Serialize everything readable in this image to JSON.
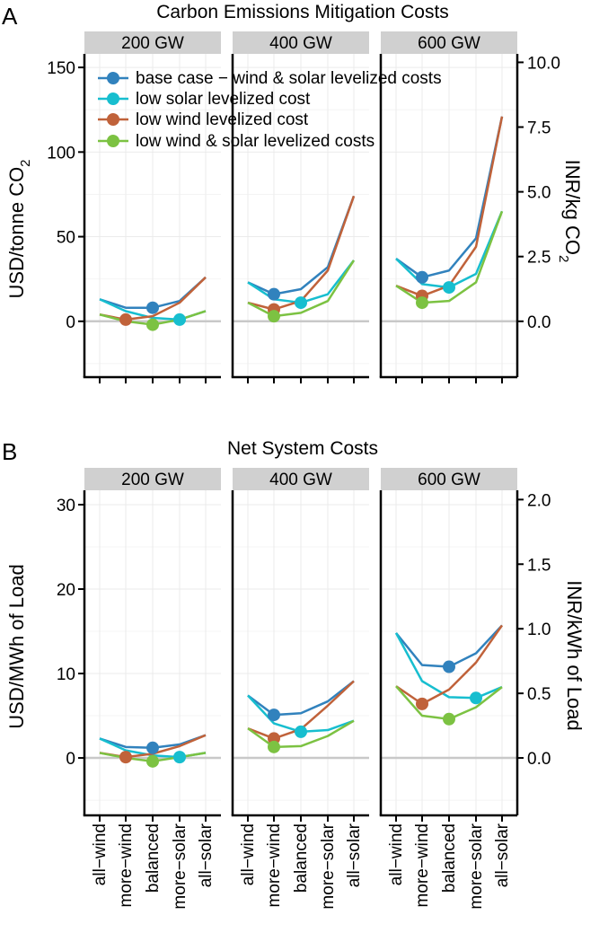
{
  "figure": {
    "panel_a_label": "A",
    "panel_b_label": "B",
    "categories": [
      "all−wind",
      "more−wind",
      "balanced",
      "more−solar",
      "all−solar"
    ]
  },
  "chart_data": [
    {
      "type": "line",
      "title": "Carbon Emissions Mitigation Costs",
      "ylabel": "USD/tonne CO",
      "ylabel_sub": "2",
      "ylabel_right": "INR/kg CO",
      "ylabel_right_sub": "2",
      "ylim": [
        -33,
        158
      ],
      "yticks": [
        0,
        50,
        100,
        150
      ],
      "yticks_right": [
        "0.0",
        "2.5",
        "5.0",
        "7.5",
        "10.0"
      ],
      "yticks_right_values": [
        0,
        38.25,
        76.5,
        114.75,
        153
      ],
      "grid": true,
      "legend": [
        "base case − wind & solar levelized costs",
        "low solar levelized cost",
        "low wind levelized cost",
        "low wind & solar levelized costs"
      ],
      "legend_position": "top",
      "series_colors": [
        "#3182bd",
        "#17becf",
        "#c0623a",
        "#7cc242"
      ],
      "facets": [
        {
          "label": "200 GW",
          "series": [
            {
              "name": "base case − wind & solar levelized costs",
              "values": [
                13,
                8,
                8,
                12,
                26
              ],
              "highlight": 2
            },
            {
              "name": "low solar levelized cost",
              "values": [
                13,
                6,
                2,
                1,
                6
              ],
              "highlight": 3
            },
            {
              "name": "low wind levelized cost",
              "values": [
                4,
                1,
                3,
                11,
                26
              ],
              "highlight": 1
            },
            {
              "name": "low wind & solar levelized costs",
              "values": [
                4,
                0,
                -2,
                1,
                6
              ],
              "highlight": 2
            }
          ]
        },
        {
          "label": "400 GW",
          "series": [
            {
              "name": "base case − wind & solar levelized costs",
              "values": [
                23,
                16,
                19,
                32,
                74
              ],
              "highlight": 1
            },
            {
              "name": "low solar levelized cost",
              "values": [
                23,
                13,
                11,
                16,
                36
              ],
              "highlight": 2
            },
            {
              "name": "low wind levelized cost",
              "values": [
                11,
                7,
                12,
                30,
                74
              ],
              "highlight": 1
            },
            {
              "name": "low wind & solar levelized costs",
              "values": [
                11,
                3,
                5,
                12,
                36
              ],
              "highlight": 1
            }
          ]
        },
        {
          "label": "600 GW",
          "series": [
            {
              "name": "base case − wind & solar levelized costs",
              "values": [
                37,
                26,
                30,
                49,
                121
              ],
              "highlight": 1
            },
            {
              "name": "low solar levelized cost",
              "values": [
                37,
                22,
                20,
                28,
                65
              ],
              "highlight": 2
            },
            {
              "name": "low wind levelized cost",
              "values": [
                21,
                15,
                21,
                44,
                121
              ],
              "highlight": 1
            },
            {
              "name": "low wind & solar levelized costs",
              "values": [
                21,
                11,
                12,
                23,
                65
              ],
              "highlight": 1
            }
          ]
        }
      ]
    },
    {
      "type": "line",
      "title": "Net System Costs",
      "ylabel": "USD/MWh of Load",
      "ylabel_right": "INR/kWh of Load",
      "ylim": [
        -6.8,
        31.7
      ],
      "yticks": [
        0,
        10,
        20,
        30
      ],
      "yticks_right": [
        "0.0",
        "0.5",
        "1.0",
        "1.5",
        "2.0"
      ],
      "yticks_right_values": [
        0,
        7.65,
        15.3,
        22.95,
        30.6
      ],
      "grid": true,
      "facets": [
        {
          "label": "200 GW",
          "series": [
            {
              "name": "base case − wind & solar levelized costs",
              "values": [
                2.3,
                1.3,
                1.2,
                1.6,
                2.7
              ],
              "highlight": 2
            },
            {
              "name": "low solar levelized cost",
              "values": [
                2.3,
                0.9,
                0.3,
                0.1,
                0.6
              ],
              "highlight": 3
            },
            {
              "name": "low wind levelized cost",
              "values": [
                0.6,
                0.1,
                0.5,
                1.4,
                2.7
              ],
              "highlight": 1
            },
            {
              "name": "low wind & solar levelized costs",
              "values": [
                0.6,
                0.0,
                -0.4,
                0.1,
                0.6
              ],
              "highlight": 2
            }
          ]
        },
        {
          "label": "400 GW",
          "series": [
            {
              "name": "base case − wind & solar levelized costs",
              "values": [
                7.4,
                5.1,
                5.3,
                6.7,
                9.1
              ],
              "highlight": 1
            },
            {
              "name": "low solar levelized cost",
              "values": [
                7.4,
                4.1,
                3.1,
                3.3,
                4.4
              ],
              "highlight": 2
            },
            {
              "name": "low wind levelized cost",
              "values": [
                3.5,
                2.3,
                3.4,
                6.2,
                9.1
              ],
              "highlight": 1
            },
            {
              "name": "low wind & solar levelized costs",
              "values": [
                3.5,
                1.3,
                1.4,
                2.6,
                4.4
              ],
              "highlight": 1
            }
          ]
        },
        {
          "label": "600 GW",
          "series": [
            {
              "name": "base case − wind & solar levelized costs",
              "values": [
                14.8,
                11.0,
                10.8,
                12.4,
                15.7
              ],
              "highlight": 2
            },
            {
              "name": "low solar levelized cost",
              "values": [
                14.8,
                9.1,
                7.2,
                7.1,
                8.4
              ],
              "highlight": 3
            },
            {
              "name": "low wind levelized cost",
              "values": [
                8.5,
                6.4,
                8.1,
                11.3,
                15.7
              ],
              "highlight": 1
            },
            {
              "name": "low wind & solar levelized costs",
              "values": [
                8.5,
                5.0,
                4.6,
                6.0,
                8.4
              ],
              "highlight": 2
            }
          ]
        }
      ]
    }
  ]
}
